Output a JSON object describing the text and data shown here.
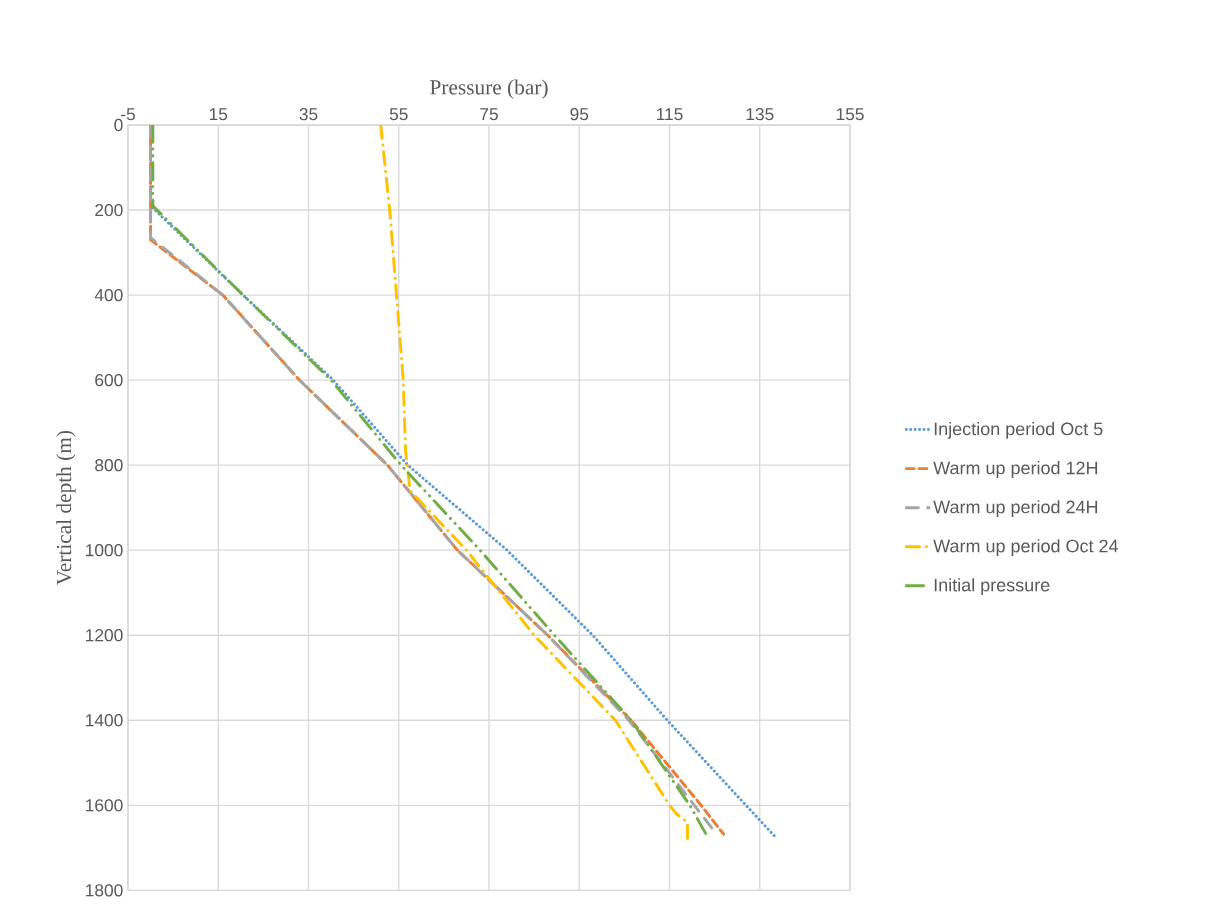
{
  "chart_data": {
    "type": "line",
    "xlabel": "Pressure (bar)",
    "ylabel": "Vertical depth (m)",
    "xlim": [
      -5,
      155
    ],
    "xticks": [
      -5,
      15,
      35,
      55,
      75,
      95,
      115,
      135,
      155
    ],
    "ylim": [
      1800,
      0
    ],
    "yticks": [
      0,
      200,
      400,
      600,
      800,
      1000,
      1200,
      1400,
      1600,
      1800
    ],
    "grid": true,
    "legend": "right",
    "marker": "none",
    "series": [
      {
        "name": "Injection period  Oct 5",
        "color": "#5b9bd5",
        "line_style": "dotted",
        "x": [
          0,
          0,
          20.5,
          40.5,
          57,
          79,
          98,
          114.5,
          138.5
        ],
        "values": [
          0,
          190,
          400,
          600,
          800,
          1000,
          1200,
          1400,
          1675
        ]
      },
      {
        "name": "Warm up period  12H",
        "color": "#ed7d31",
        "line_style": "dashed",
        "x": [
          0,
          0,
          16,
          33,
          52.5,
          68,
          88,
          106.5,
          122,
          127
        ],
        "values": [
          0,
          270,
          400,
          600,
          800,
          1000,
          1200,
          1400,
          1600,
          1668
        ]
      },
      {
        "name": "Warm up period  24H",
        "color": "#a5a5a5",
        "line_style": "longdashed",
        "x": [
          0,
          0,
          16,
          33,
          52.5,
          68,
          88,
          106,
          120.5,
          124.5
        ],
        "values": [
          0,
          265,
          400,
          600,
          800,
          1000,
          1200,
          1400,
          1600,
          1655
        ]
      },
      {
        "name": "Warm up period  Oct 24",
        "color": "#ffc000",
        "line_style": "dashdot",
        "x": [
          51,
          53,
          54.5,
          56,
          56.5,
          57.5,
          70,
          85,
          103,
          115,
          116.5,
          119,
          119
        ],
        "values": [
          0,
          200,
          400,
          600,
          765,
          860,
          1000,
          1200,
          1400,
          1600,
          1620,
          1640,
          1680
        ]
      },
      {
        "name": "Initial pressure",
        "color": "#70ad47",
        "line_style": "dashdotdot",
        "x": [
          0.5,
          0.5,
          20.5,
          40,
          55.5,
          73,
          89.5,
          106.5,
          119.5,
          123
        ],
        "values": [
          0,
          190,
          400,
          600,
          800,
          1000,
          1200,
          1400,
          1600,
          1666
        ]
      }
    ]
  }
}
